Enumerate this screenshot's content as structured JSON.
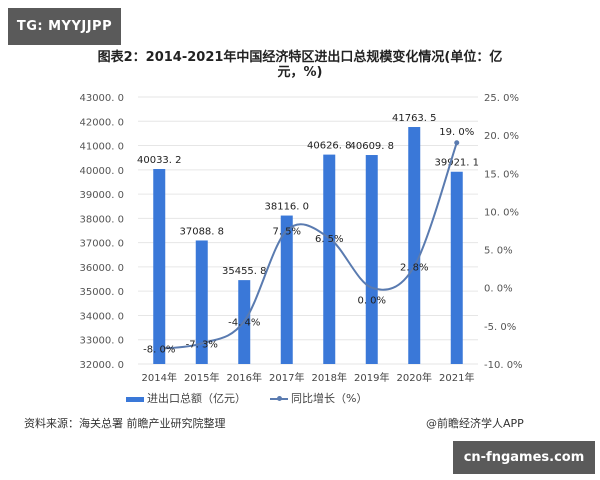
{
  "watermark_tag": "TG: MYYJJPP",
  "domain_badge": "cn-fngames.com",
  "title": "图表2：2014-2021年中国经济特区进出口总规模变化情况(单位：亿元，%)",
  "title_line1": "图表2：2014-2021年中国经济特区进出口总规模变化情况(单位：亿",
  "title_line2": "元，%)",
  "legend": {
    "bar": "进出口总额（亿元）",
    "line": "同比增长（%）"
  },
  "source": "资料来源：海关总署 前瞻产业研究院整理",
  "credit": "@前瞻经济学人APP",
  "colors": {
    "bar": "#3a78d8",
    "line": "#5a7bb0",
    "grid": "#e6e6e6"
  },
  "chart_data": {
    "type": "bar",
    "title": "图表2：2014-2021年中国经济特区进出口总规模变化情况(单位：亿元，%)",
    "categories": [
      "2014年",
      "2015年",
      "2016年",
      "2017年",
      "2018年",
      "2019年",
      "2020年",
      "2021年"
    ],
    "series": [
      {
        "name": "进出口总额（亿元）",
        "type": "bar",
        "axis": "left",
        "values": [
          40033.2,
          37088.8,
          35455.8,
          38116.0,
          40626.8,
          40609.8,
          41763.5,
          39921.1
        ],
        "labels": [
          "40033. 2",
          "37088. 8",
          "35455. 8",
          "38116. 0",
          "40626. 8",
          "40609. 8",
          "41763. 5",
          "39921. 1"
        ]
      },
      {
        "name": "同比增长（%）",
        "type": "line",
        "axis": "right",
        "values": [
          -8.0,
          -7.3,
          -4.4,
          7.5,
          6.5,
          0.0,
          2.8,
          19.0
        ],
        "labels": [
          "-8. 0%",
          "-7. 3%",
          "-4. 4%",
          "7. 5%",
          "6. 5%",
          "0. 0%",
          "2. 8%",
          "19. 0%"
        ]
      }
    ],
    "ylim_left": [
      32000,
      43000
    ],
    "yticks_left": [
      "43000. 0",
      "42000. 0",
      "41000. 0",
      "40000. 0",
      "39000. 0",
      "38000. 0",
      "37000. 0",
      "36000. 0",
      "35000. 0",
      "34000. 0",
      "33000. 0",
      "32000. 0"
    ],
    "ylim_right": [
      -10,
      25
    ],
    "yticks_right": [
      "25. 0%",
      "20. 0%",
      "15. 0%",
      "10. 0%",
      "5. 0%",
      "0. 0%",
      "-5. 0%",
      "-10. 0%"
    ],
    "xlabel": "",
    "ylabel": "",
    "grid": true,
    "legend_position": "bottom"
  }
}
